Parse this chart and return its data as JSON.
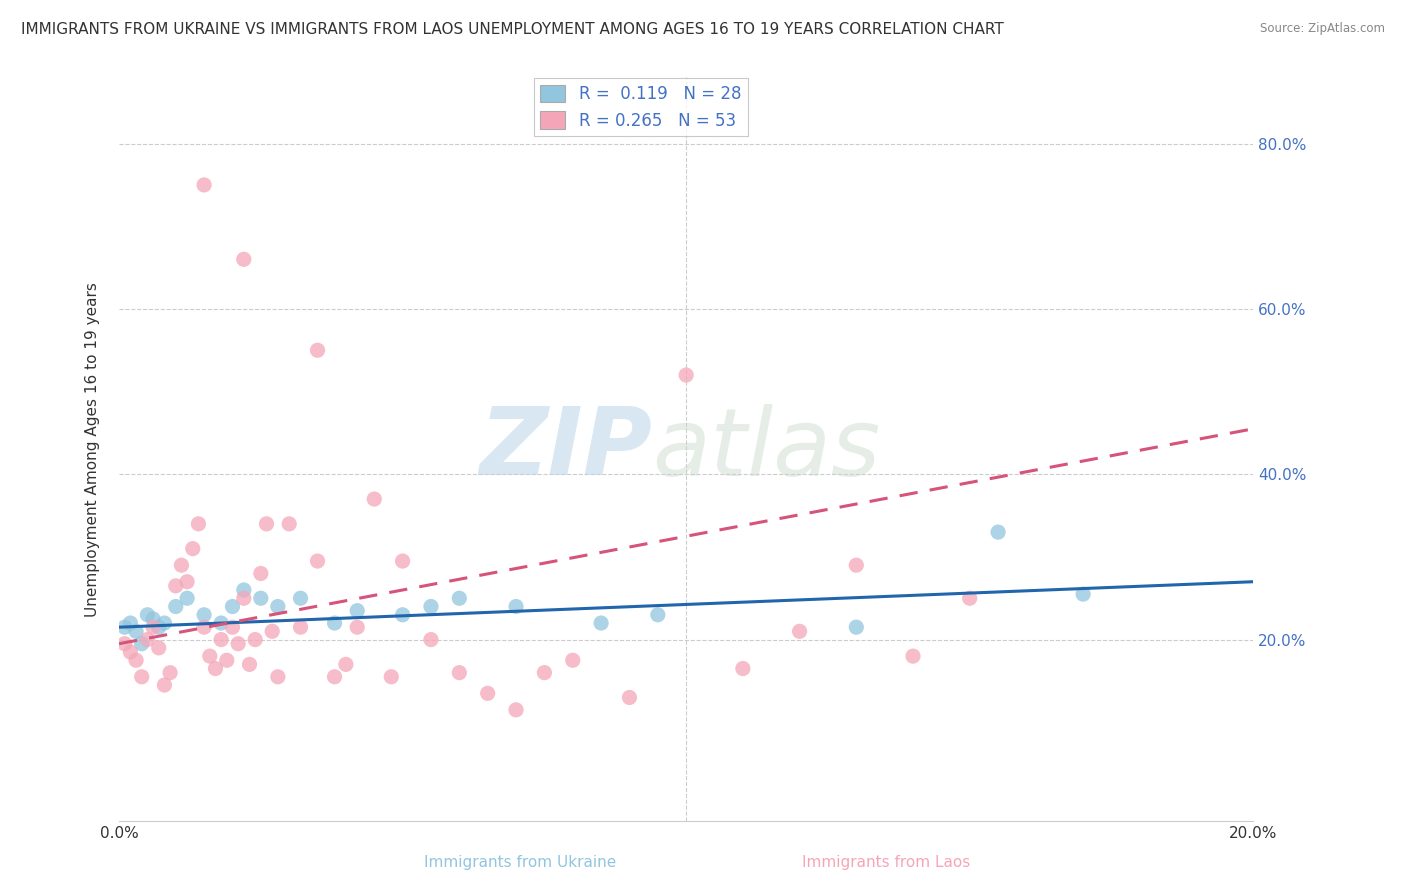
{
  "title": "IMMIGRANTS FROM UKRAINE VS IMMIGRANTS FROM LAOS UNEMPLOYMENT AMONG AGES 16 TO 19 YEARS CORRELATION CHART",
  "source": "Source: ZipAtlas.com",
  "ylabel": "Unemployment Among Ages 16 to 19 years",
  "xlabel_ukraine": "Immigrants from Ukraine",
  "xlabel_laos": "Immigrants from Laos",
  "xlim": [
    0.0,
    0.2
  ],
  "ylim": [
    -0.02,
    0.88
  ],
  "ukraine_R": 0.119,
  "ukraine_N": 28,
  "laos_R": 0.265,
  "laos_N": 53,
  "ukraine_color": "#92c5de",
  "laos_color": "#f4a6b8",
  "ukraine_line_color": "#2166ac",
  "laos_line_color": "#d6537a",
  "ukraine_x": [
    0.001,
    0.002,
    0.003,
    0.004,
    0.005,
    0.006,
    0.007,
    0.008,
    0.01,
    0.012,
    0.015,
    0.018,
    0.02,
    0.022,
    0.025,
    0.028,
    0.032,
    0.038,
    0.042,
    0.05,
    0.055,
    0.06,
    0.07,
    0.085,
    0.095,
    0.13,
    0.155,
    0.17
  ],
  "ukraine_y": [
    0.215,
    0.22,
    0.21,
    0.195,
    0.23,
    0.225,
    0.215,
    0.22,
    0.24,
    0.25,
    0.23,
    0.22,
    0.24,
    0.26,
    0.25,
    0.24,
    0.25,
    0.22,
    0.235,
    0.23,
    0.24,
    0.25,
    0.24,
    0.22,
    0.23,
    0.215,
    0.33,
    0.255
  ],
  "laos_x": [
    0.001,
    0.002,
    0.003,
    0.004,
    0.005,
    0.006,
    0.007,
    0.008,
    0.009,
    0.01,
    0.011,
    0.012,
    0.013,
    0.014,
    0.015,
    0.016,
    0.017,
    0.018,
    0.019,
    0.02,
    0.021,
    0.022,
    0.023,
    0.024,
    0.025,
    0.026,
    0.027,
    0.028,
    0.03,
    0.032,
    0.035,
    0.038,
    0.04,
    0.042,
    0.045,
    0.048,
    0.05,
    0.055,
    0.06,
    0.065,
    0.07,
    0.075,
    0.08,
    0.09,
    0.1,
    0.11,
    0.12,
    0.13,
    0.14,
    0.15,
    0.015,
    0.022,
    0.035
  ],
  "laos_y": [
    0.195,
    0.185,
    0.175,
    0.155,
    0.2,
    0.215,
    0.19,
    0.145,
    0.16,
    0.265,
    0.29,
    0.27,
    0.31,
    0.34,
    0.215,
    0.18,
    0.165,
    0.2,
    0.175,
    0.215,
    0.195,
    0.25,
    0.17,
    0.2,
    0.28,
    0.34,
    0.21,
    0.155,
    0.34,
    0.215,
    0.295,
    0.155,
    0.17,
    0.215,
    0.37,
    0.155,
    0.295,
    0.2,
    0.16,
    0.135,
    0.115,
    0.16,
    0.175,
    0.13,
    0.52,
    0.165,
    0.21,
    0.29,
    0.18,
    0.25,
    0.75,
    0.66,
    0.55
  ],
  "ukraine_trend_x": [
    0.0,
    0.2
  ],
  "ukraine_trend_y": [
    0.215,
    0.27
  ],
  "laos_trend_x": [
    0.0,
    0.2
  ],
  "laos_trend_y": [
    0.195,
    0.455
  ],
  "background_color": "#ffffff",
  "grid_color": "#cccccc",
  "title_fontsize": 11,
  "axis_label_fontsize": 11,
  "tick_fontsize": 11,
  "legend_fontsize": 12,
  "right_ytick_color": "#4472c4",
  "watermark_text": "ZIP",
  "watermark_text2": "atlas"
}
